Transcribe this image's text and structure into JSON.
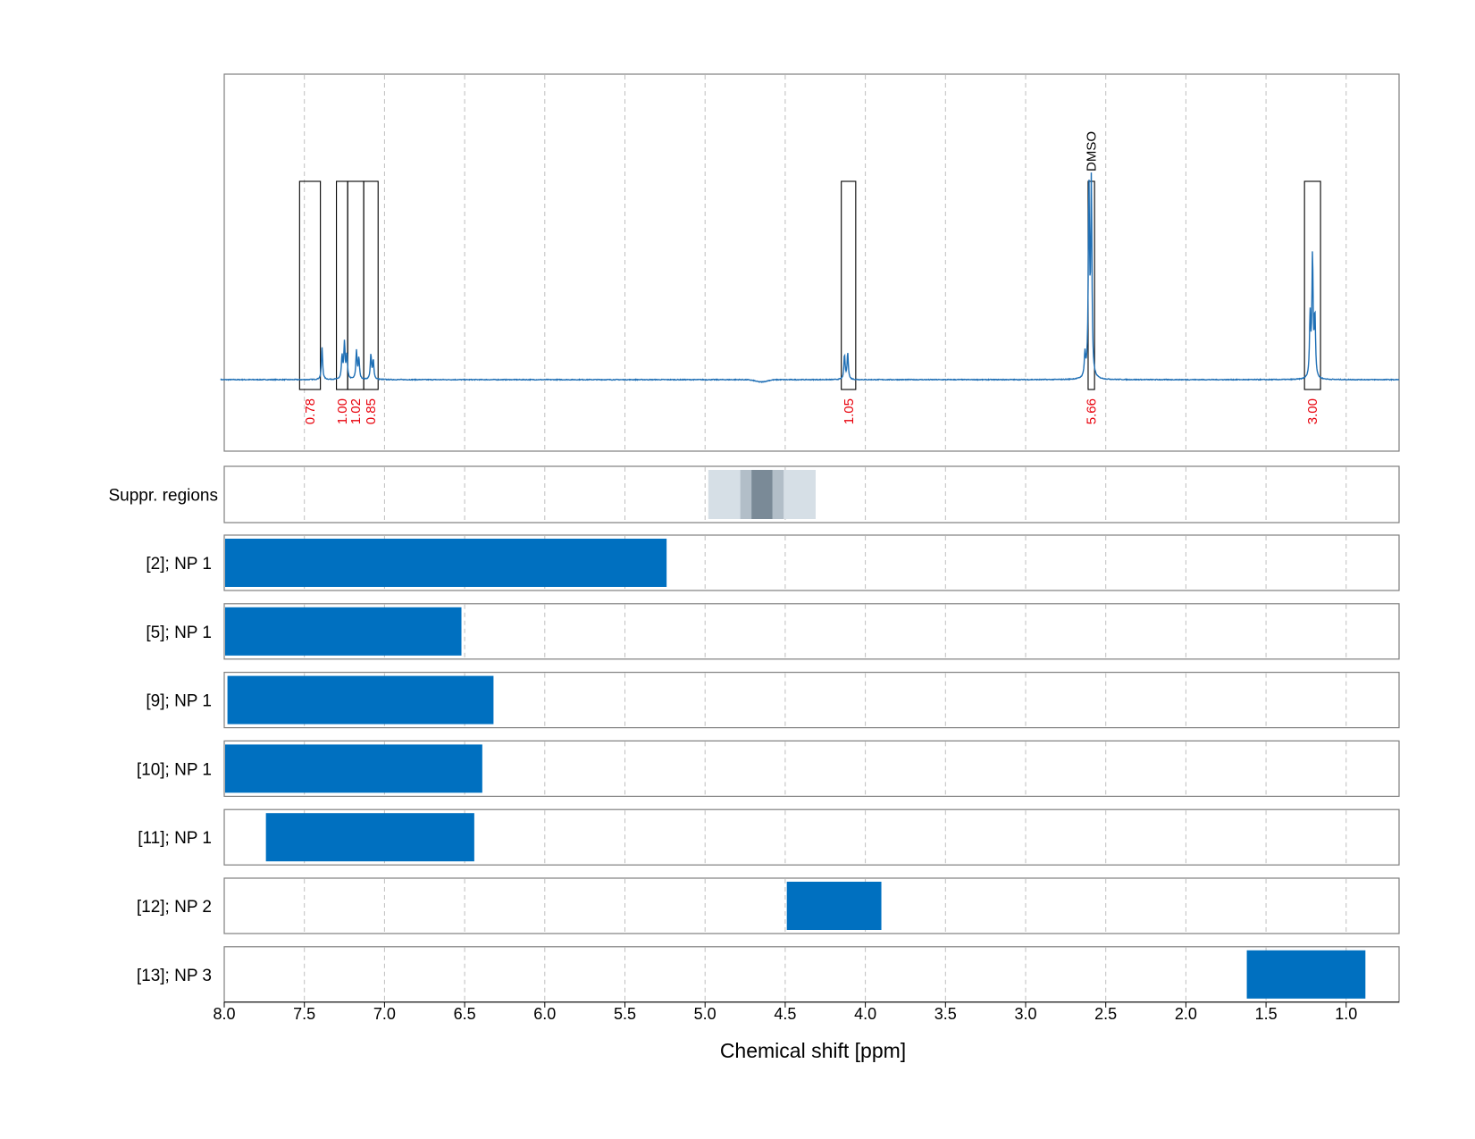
{
  "chart_data": {
    "type": "nmr-spectrum-with-range-tracks",
    "xlabel": "Chemical shift [ppm]",
    "xlim": [
      8.0,
      0.67
    ],
    "x_reversed": true,
    "x_ticks": [
      8.0,
      7.5,
      7.0,
      6.5,
      6.0,
      5.5,
      5.0,
      4.5,
      4.0,
      3.5,
      3.0,
      2.5,
      2.0,
      1.5,
      1.0
    ],
    "x_tick_labels": [
      "8.0",
      "7.5",
      "7.0",
      "6.5",
      "6.0",
      "5.5",
      "5.0",
      "4.5",
      "4.0",
      "3.5",
      "3.0",
      "2.5",
      "2.0",
      "1.5",
      "1.0"
    ],
    "grid": true,
    "colors": {
      "spectrum": "#1f6fb5",
      "bar": "#0070c0",
      "integral_label": "#e8000b",
      "suppr_light": "#d6dfe6",
      "suppr_mid": "#b2bec8",
      "suppr_dark": "#7a8a97",
      "frame": "#7f7f7f",
      "grid": "#bfbfbf"
    },
    "spectrum": {
      "peaks": [
        {
          "ppm": 7.39,
          "height": 0.17
        },
        {
          "ppm": 7.265,
          "height": 0.12
        },
        {
          "ppm": 7.25,
          "height": 0.19
        },
        {
          "ppm": 7.235,
          "height": 0.13
        },
        {
          "ppm": 7.175,
          "height": 0.15
        },
        {
          "ppm": 7.16,
          "height": 0.11
        },
        {
          "ppm": 7.085,
          "height": 0.13
        },
        {
          "ppm": 7.07,
          "height": 0.1
        },
        {
          "ppm": 4.13,
          "height": 0.13
        },
        {
          "ppm": 4.11,
          "height": 0.14
        },
        {
          "ppm": 2.63,
          "height": 0.12
        },
        {
          "ppm": 2.605,
          "height": 0.99
        },
        {
          "ppm": 2.59,
          "height": 1.01
        },
        {
          "ppm": 1.225,
          "height": 0.32
        },
        {
          "ppm": 1.21,
          "height": 0.64
        },
        {
          "ppm": 1.195,
          "height": 0.32
        }
      ],
      "water_dip_ppm": 4.65,
      "integrals": [
        {
          "left": 7.53,
          "right": 7.4,
          "label": "0.78"
        },
        {
          "left": 7.3,
          "right": 7.23,
          "label": "1.00"
        },
        {
          "left": 7.23,
          "right": 7.13,
          "label": "1.02"
        },
        {
          "left": 7.13,
          "right": 7.04,
          "label": "0.85"
        },
        {
          "left": 4.15,
          "right": 4.06,
          "label": "1.05"
        },
        {
          "left": 2.61,
          "right": 2.57,
          "label": "5.66"
        },
        {
          "left": 1.26,
          "right": 1.16,
          "label": "3.00"
        }
      ],
      "annotations": [
        {
          "ppm": 2.59,
          "label": "DMSO"
        }
      ]
    },
    "suppr_regions": {
      "label": "Suppr. regions",
      "bands": [
        {
          "left": 4.98,
          "right": 4.31,
          "shade": "light"
        },
        {
          "left": 4.78,
          "right": 4.51,
          "shade": "mid"
        },
        {
          "left": 4.71,
          "right": 4.58,
          "shade": "dark"
        }
      ]
    },
    "tracks": [
      {
        "label": "[2]; NP 1",
        "left": 8.0,
        "right": 5.24
      },
      {
        "label": "[5]; NP 1",
        "left": 8.0,
        "right": 6.52
      },
      {
        "label": "[9]; NP 1",
        "left": 7.98,
        "right": 6.32
      },
      {
        "label": "[10]; NP 1",
        "left": 8.0,
        "right": 6.39
      },
      {
        "label": "[11]; NP 1",
        "left": 7.74,
        "right": 6.44
      },
      {
        "label": "[12]; NP 2",
        "left": 4.49,
        "right": 3.9
      },
      {
        "label": "[13]; NP 3",
        "left": 1.62,
        "right": 0.88
      }
    ]
  }
}
